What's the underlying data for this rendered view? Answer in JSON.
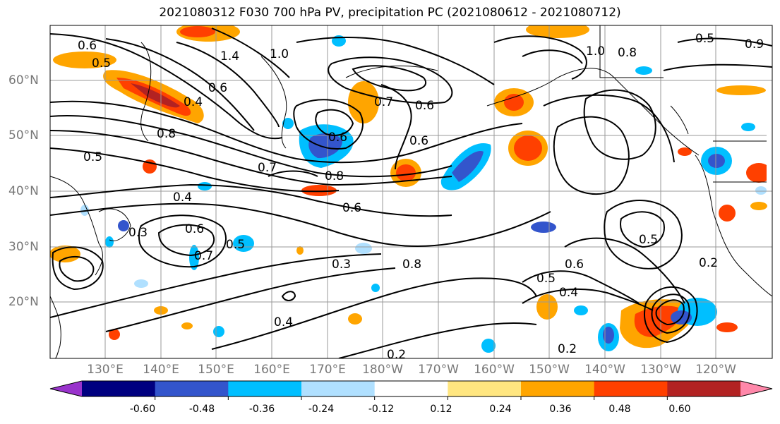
{
  "title": "2021080312 F030 700 hPa PV, precipitation PC (2021080612 - 2021080712)",
  "lat_labels": [
    "60°N",
    "50°N",
    "40°N",
    "30°N",
    "20°N"
  ],
  "lon_labels": [
    "130°E",
    "140°E",
    "150°E",
    "160°E",
    "170°E",
    "180°W",
    "170°W",
    "160°W",
    "150°W",
    "140°W",
    "130°W",
    "120°W"
  ],
  "contour_labels": [
    "0.6",
    "0.5",
    "1.4",
    "1.0",
    "0.6",
    "0.4",
    "0.8",
    "0.5",
    "0.7",
    "0.8",
    "0.7",
    "0.6",
    "0.4",
    "0.3",
    "0.6",
    "0.7",
    "0.5",
    "0.6",
    "0.8",
    "0.3",
    "0.4",
    "0.2",
    "0.2",
    "0.5",
    "0.4",
    "0.6",
    "0.5",
    "0.2",
    "0.8",
    "1.0",
    "0.5",
    "0.9",
    "0.6",
    "0.6"
  ],
  "colorbar": {
    "colors": [
      "#9933cc",
      "#000080",
      "#3355cc",
      "#00bfff",
      "#b0e0ff",
      "#ffffff",
      "#ffe680",
      "#ffa500",
      "#ff4000",
      "#b22222",
      "#ff88aa"
    ],
    "tick_labels": [
      "-0.60",
      "-0.48",
      "-0.36",
      "-0.24",
      "-0.12",
      "0.12",
      "0.24",
      "0.36",
      "0.48",
      "0.60"
    ]
  },
  "colors": {
    "neg_light": "#b0e0ff",
    "neg_mid": "#00bfff",
    "neg_strong": "#3355cc",
    "pos_light": "#ffe680",
    "pos_mid": "#ffa500",
    "pos_strong": "#ff4000",
    "grid": "#999999",
    "axis_label": "#777777"
  }
}
